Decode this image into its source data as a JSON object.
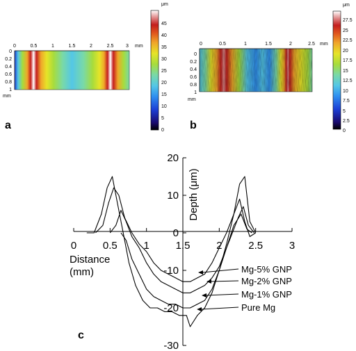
{
  "panels": {
    "a": {
      "label": "a",
      "x_ticks": [
        "0",
        "0.5",
        "1",
        "1.5",
        "2",
        "2.5",
        "3"
      ],
      "x_unit": "mm",
      "y_ticks": [
        "0",
        "0.2",
        "0.4",
        "0.6",
        "0.8",
        "1"
      ],
      "y_unit": "mm",
      "colorbar_unit": "μm",
      "colorbar_ticks": [
        "45",
        "40",
        "35",
        "30",
        "25",
        "20",
        "15",
        "10",
        "5",
        "0"
      ]
    },
    "b": {
      "label": "b",
      "x_ticks": [
        "0",
        "0.5",
        "1",
        "1.5",
        "2",
        "2.5"
      ],
      "x_unit": "mm",
      "y_ticks": [
        "0",
        "0.2",
        "0.4",
        "0.6",
        "0.8",
        "1"
      ],
      "y_unit": "mm",
      "colorbar_unit": "μm",
      "colorbar_ticks": [
        "27.5",
        "25",
        "22.5",
        "20",
        "17.5",
        "15",
        "12.5",
        "10",
        "7.5",
        "5",
        "2.5",
        "0"
      ]
    },
    "c": {
      "label": "c"
    }
  },
  "colors": {
    "colormap": [
      "#1a0a6e",
      "#1c3fd6",
      "#2f8ff0",
      "#54c7e6",
      "#79d9a8",
      "#a7dc3c",
      "#e6e428",
      "#f0a62a",
      "#e0561e",
      "#c41e1e",
      "#e08a8a",
      "#ffffff"
    ],
    "line": "#000000"
  },
  "chart_data": {
    "type": "line",
    "title": "",
    "xlabel": "Distance\n(mm)",
    "ylabel": "Depth (μm)",
    "xlim": [
      0,
      3
    ],
    "ylim": [
      -30,
      20
    ],
    "x_ticks": [
      0,
      0.5,
      1,
      1.5,
      2,
      2.5,
      3
    ],
    "y_ticks": [
      -30,
      -20,
      -10,
      0,
      10,
      20
    ],
    "grid": false,
    "series": [
      {
        "name": "Mg-5% GNP",
        "x": [
          0.3,
          0.4,
          0.48,
          0.55,
          0.62,
          0.7,
          0.8,
          0.9,
          1.0,
          1.1,
          1.2,
          1.3,
          1.4,
          1.5,
          1.6,
          1.7,
          1.8,
          1.9,
          2.0,
          2.1,
          2.2,
          2.28,
          2.35,
          2.42,
          2.5
        ],
        "y": [
          0,
          2,
          8,
          12,
          10,
          4,
          0,
          -3,
          -5,
          -8,
          -10,
          -11,
          -12,
          -13,
          -13,
          -12,
          -11,
          -8,
          -4,
          0,
          5,
          9,
          3,
          -1,
          0
        ]
      },
      {
        "name": "Mg-2% GNP",
        "x": [
          0.5,
          0.58,
          0.65,
          0.72,
          0.8,
          0.9,
          1.0,
          1.1,
          1.2,
          1.3,
          1.4,
          1.5,
          1.6,
          1.7,
          1.8,
          1.9,
          2.0,
          2.1,
          2.18,
          2.26,
          2.33,
          2.4,
          2.48
        ],
        "y": [
          0,
          2,
          6,
          3,
          -1,
          -4,
          -8,
          -11,
          -13,
          -14,
          -15,
          -16,
          -16,
          -15,
          -14,
          -12,
          -9,
          -4,
          0,
          4,
          7,
          2,
          0
        ]
      },
      {
        "name": "Mg-1% GNP",
        "x": [
          0.65,
          0.72,
          0.8,
          0.9,
          1.0,
          1.1,
          1.2,
          1.3,
          1.4,
          1.5,
          1.6,
          1.7,
          1.8,
          1.9,
          2.0,
          2.1,
          2.2,
          2.3,
          2.38,
          2.45
        ],
        "y": [
          0,
          -2,
          -7,
          -11,
          -15,
          -17,
          -18,
          -19,
          -19,
          -20,
          -20,
          -19,
          -18,
          -15,
          -10,
          -4,
          2,
          5,
          1,
          0
        ]
      },
      {
        "name": "Pure Mg",
        "x": [
          0.18,
          0.28,
          0.38,
          0.46,
          0.53,
          0.6,
          0.68,
          0.76,
          0.85,
          0.95,
          1.05,
          1.15,
          1.25,
          1.35,
          1.45,
          1.55,
          1.6,
          1.7,
          1.8,
          1.9,
          2.0,
          2.1,
          2.2,
          2.28,
          2.35,
          2.42,
          2.5
        ],
        "y": [
          0,
          0,
          5,
          12,
          15,
          8,
          0,
          -8,
          -14,
          -18,
          -20,
          -20,
          -21,
          -21,
          -22,
          -22,
          -25,
          -22,
          -20,
          -16,
          -10,
          -3,
          5,
          13,
          15,
          3,
          0
        ]
      }
    ],
    "annotations": [
      "Mg-5% GNP",
      "Mg-2% GNP",
      "Mg-1% GNP",
      "Pure Mg"
    ]
  }
}
